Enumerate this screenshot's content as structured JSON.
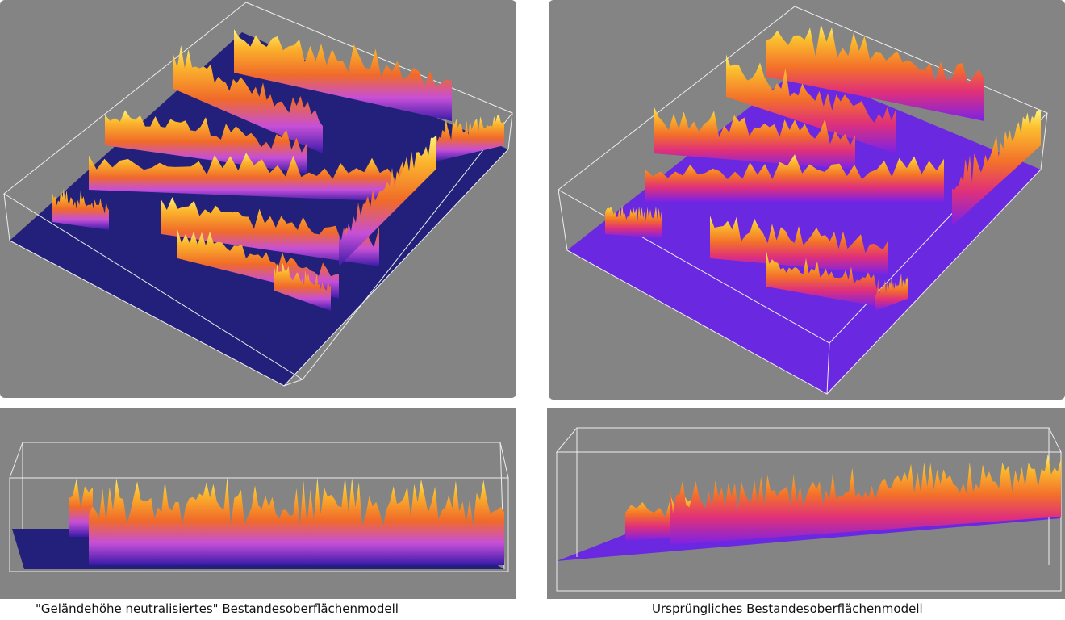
{
  "captions": [
    "\"Geländehöhe neutralisiertes\" Bestandesoberflächenmodell",
    "Ursprüngliches Bestandesoberflächenmodell"
  ]
}
